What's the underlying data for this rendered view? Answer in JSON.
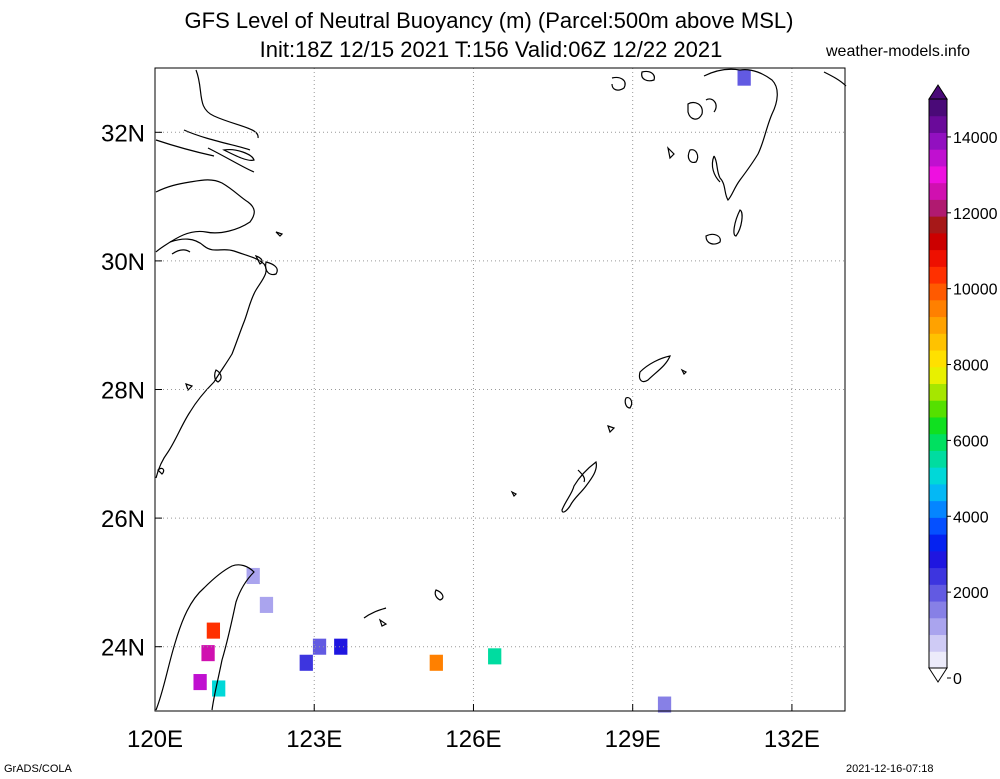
{
  "header": {
    "title_line1": "GFS Level of Neutral Buoyancy (m) (Parcel:500m above MSL)",
    "title_line2": "Init:18Z 12/15 2021 T:156 Valid:06Z 12/22 2021",
    "site": "weather-models.info"
  },
  "footer": {
    "left": "GrADS/COLA",
    "right": "2021-12-16-07:18"
  },
  "chart_data": {
    "type": "heatmap",
    "title": "GFS Level of Neutral Buoyancy (m) (Parcel:500m above MSL)",
    "subtitle": "Init:18Z 12/15 2021 T:156 Valid:06Z 12/22 2021",
    "xlabel": "",
    "ylabel": "",
    "xlim": [
      120,
      133
    ],
    "ylim": [
      23,
      33
    ],
    "x_ticks": [
      {
        "value": 120,
        "label": "120E"
      },
      {
        "value": 123,
        "label": "123E"
      },
      {
        "value": 126,
        "label": "126E"
      },
      {
        "value": 129,
        "label": "129E"
      },
      {
        "value": 132,
        "label": "132E"
      }
    ],
    "y_ticks": [
      {
        "value": 24,
        "label": "24N"
      },
      {
        "value": 26,
        "label": "26N"
      },
      {
        "value": 28,
        "label": "28N"
      },
      {
        "value": 30,
        "label": "30N"
      },
      {
        "value": 32,
        "label": "32N"
      }
    ],
    "grid": true,
    "colorbar": {
      "placement": "right",
      "min": 0,
      "max": 15000,
      "tick_labels": [
        "0",
        "2000",
        "4000",
        "6000",
        "8000",
        "10000",
        "12000",
        "14000"
      ],
      "tick_values": [
        0,
        2000,
        4000,
        6000,
        8000,
        10000,
        12000,
        14000
      ],
      "colors": [
        "#ecebfa",
        "#cfcbf5",
        "#aaa4ee",
        "#8780e6",
        "#625ae2",
        "#3d35df",
        "#1f16e0",
        "#0522f0",
        "#0550ff",
        "#0585ff",
        "#04b8f5",
        "#00d8d8",
        "#00dca0",
        "#00e060",
        "#10e020",
        "#55e000",
        "#a6e600",
        "#e8f000",
        "#ffe000",
        "#ffc200",
        "#ffa200",
        "#ff8000",
        "#ff5a00",
        "#ff3000",
        "#ee1000",
        "#cc0000",
        "#a61818",
        "#b01a70",
        "#d010b0",
        "#ee10e0",
        "#c010d0",
        "#9210c0",
        "#6a0a9a",
        "#4a0a78"
      ]
    },
    "cells": [
      {
        "lon": 131.1,
        "lat": 32.85,
        "value": 2000
      },
      {
        "lon": 121.85,
        "lat": 25.1,
        "value": 1200
      },
      {
        "lon": 122.1,
        "lat": 24.65,
        "value": 1200
      },
      {
        "lon": 121.1,
        "lat": 24.25,
        "value": 10500
      },
      {
        "lon": 121.0,
        "lat": 23.9,
        "value": 12500
      },
      {
        "lon": 120.85,
        "lat": 23.45,
        "value": 13500
      },
      {
        "lon": 121.2,
        "lat": 23.35,
        "value": 5000
      },
      {
        "lon": 122.85,
        "lat": 23.75,
        "value": 2600
      },
      {
        "lon": 123.1,
        "lat": 24.0,
        "value": 2200
      },
      {
        "lon": 123.5,
        "lat": 24.0,
        "value": 2800
      },
      {
        "lon": 125.3,
        "lat": 23.75,
        "value": 9500
      },
      {
        "lon": 126.4,
        "lat": 23.85,
        "value": 5500
      },
      {
        "lon": 129.6,
        "lat": 23.1,
        "value": 1400
      }
    ]
  }
}
